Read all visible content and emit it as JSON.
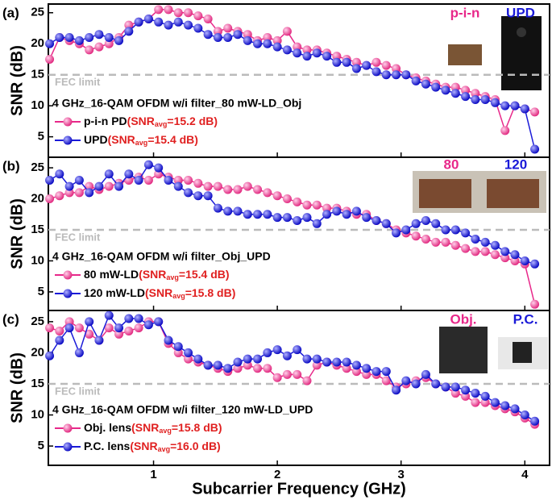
{
  "chart_data": [
    {
      "type": "line",
      "panel": "(a)",
      "title": "4 GHz_16-QAM OFDM w/i filter_80 mW-LD_Obj",
      "ylabel": "SNR (dB)",
      "fec": 15,
      "fec_label": "FEC limit",
      "xtick_labels": false,
      "xlim": [
        0.15,
        4.2
      ],
      "xticks": [
        1,
        2,
        3,
        4
      ],
      "ylim": [
        1.7,
        26.4
      ],
      "yticks": [
        5,
        10,
        15,
        20,
        25
      ],
      "insets": [
        "p-i-n",
        "UPD"
      ],
      "x": [
        0.16,
        0.24,
        0.32,
        0.4,
        0.48,
        0.56,
        0.64,
        0.72,
        0.8,
        0.88,
        0.96,
        1.04,
        1.12,
        1.2,
        1.28,
        1.36,
        1.44,
        1.52,
        1.6,
        1.68,
        1.76,
        1.84,
        1.92,
        2.0,
        2.08,
        2.16,
        2.24,
        2.32,
        2.4,
        2.48,
        2.56,
        2.64,
        2.72,
        2.8,
        2.88,
        2.96,
        3.04,
        3.12,
        3.2,
        3.28,
        3.36,
        3.44,
        3.52,
        3.6,
        3.68,
        3.76,
        3.84,
        3.92,
        4.0,
        4.08
      ],
      "series": [
        {
          "name": "p-i-n PD",
          "color": "#e8288a",
          "note": [
            "(SNR",
            "avg",
            "=15.2 dB)"
          ],
          "values": [
            17.5,
            21,
            20.5,
            20,
            19,
            19.5,
            20,
            21,
            23,
            23.5,
            24,
            25.5,
            25.5,
            25,
            25,
            24.5,
            24,
            22,
            22.5,
            22,
            21.5,
            20.5,
            21,
            20.5,
            22,
            19.5,
            19,
            19,
            18.5,
            18,
            17.5,
            17,
            16.5,
            17,
            16.5,
            16,
            15,
            14.5,
            14,
            13.5,
            13,
            13,
            12.5,
            12,
            11.5,
            11,
            6,
            10,
            9.5,
            9
          ]
        },
        {
          "name": "UPD",
          "color": "#1a1ad8",
          "note": [
            "(SNR",
            "avg",
            "=15.4 dB)"
          ],
          "values": [
            20,
            21,
            21,
            20.5,
            21,
            21.5,
            21,
            20.5,
            22,
            23.5,
            24,
            23.5,
            23,
            23.5,
            23,
            22.5,
            21.5,
            21,
            21,
            21.5,
            20.5,
            20,
            20,
            19.5,
            19,
            18.5,
            18,
            18.5,
            18,
            17,
            17,
            16,
            16.5,
            15.5,
            15,
            15,
            15,
            14,
            13.5,
            13,
            12.5,
            12,
            11.5,
            11,
            11,
            10.5,
            10,
            10,
            9.5,
            3
          ]
        }
      ]
    },
    {
      "type": "line",
      "panel": "(b)",
      "title": "4 GHz_16-QAM OFDM w/i filter_Obj_UPD",
      "ylabel": "SNR (dB)",
      "fec": 15,
      "fec_label": "FEC limit",
      "xtick_labels": false,
      "xlim": [
        0.15,
        4.2
      ],
      "xticks": [
        1,
        2,
        3,
        4
      ],
      "ylim": [
        2.0,
        26.7
      ],
      "yticks": [
        5,
        10,
        15,
        20,
        25
      ],
      "insets": [
        "80",
        "120"
      ],
      "x": [
        0.16,
        0.24,
        0.32,
        0.4,
        0.48,
        0.56,
        0.64,
        0.72,
        0.8,
        0.88,
        0.96,
        1.04,
        1.12,
        1.2,
        1.28,
        1.36,
        1.44,
        1.52,
        1.6,
        1.68,
        1.76,
        1.84,
        1.92,
        2.0,
        2.08,
        2.16,
        2.24,
        2.32,
        2.4,
        2.48,
        2.56,
        2.64,
        2.72,
        2.8,
        2.88,
        2.96,
        3.04,
        3.12,
        3.2,
        3.28,
        3.36,
        3.44,
        3.52,
        3.6,
        3.68,
        3.76,
        3.84,
        3.92,
        4.0,
        4.08
      ],
      "series": [
        {
          "name": "80 mW-LD",
          "color": "#e8288a",
          "note": [
            "(SNR",
            "avg",
            "=15.4 dB)"
          ],
          "values": [
            20,
            20.5,
            21,
            21,
            22,
            21.5,
            22,
            22.5,
            23,
            23.5,
            23,
            24,
            23.5,
            23,
            23,
            22.5,
            22,
            22,
            21.5,
            21.5,
            22,
            21.5,
            21,
            20.5,
            20,
            19.5,
            19,
            19,
            18.5,
            18.5,
            18,
            17.5,
            17.5,
            16.5,
            16,
            15,
            14.5,
            14,
            13.5,
            13,
            13,
            12.5,
            12,
            11.5,
            11.5,
            11,
            10.5,
            10,
            9.5,
            3
          ]
        },
        {
          "name": "120 mW-LD",
          "color": "#1a1ad8",
          "note": [
            "(SNR",
            "avg",
            "=15.8 dB)"
          ],
          "values": [
            23,
            24,
            22,
            23,
            21,
            22,
            24,
            22,
            24,
            23,
            25.5,
            25,
            23,
            22,
            21,
            20.5,
            20.5,
            18.5,
            18,
            18,
            17.5,
            17.5,
            17.5,
            17,
            17,
            16.5,
            17,
            16,
            17.5,
            18,
            17.5,
            18,
            17,
            16.5,
            16,
            14.5,
            15,
            16,
            16.5,
            16,
            15,
            15,
            14.5,
            13.5,
            13,
            12.5,
            11.5,
            11,
            10,
            9.5
          ]
        }
      ]
    },
    {
      "type": "line",
      "panel": "(c)",
      "title": "4 GHz_16-QAM OFDM w/i filter_120 mW-LD_UPD",
      "ylabel": "SNR (dB)",
      "xlabel": "Subcarrier Frequency (GHz)",
      "fec": 15,
      "fec_label": "FEC limit",
      "xtick_labels": true,
      "xlim": [
        0.15,
        4.2
      ],
      "xticks": [
        1,
        2,
        3,
        4
      ],
      "ylim": [
        1.9,
        26.8
      ],
      "yticks": [
        5,
        10,
        15,
        20,
        25
      ],
      "insets": [
        "Obj.",
        "P.C."
      ],
      "x": [
        0.16,
        0.24,
        0.32,
        0.4,
        0.48,
        0.56,
        0.64,
        0.72,
        0.8,
        0.88,
        0.96,
        1.04,
        1.12,
        1.2,
        1.28,
        1.36,
        1.44,
        1.52,
        1.6,
        1.68,
        1.76,
        1.84,
        1.92,
        2.0,
        2.08,
        2.16,
        2.24,
        2.32,
        2.4,
        2.48,
        2.56,
        2.64,
        2.72,
        2.8,
        2.88,
        2.96,
        3.04,
        3.12,
        3.2,
        3.28,
        3.36,
        3.44,
        3.52,
        3.6,
        3.68,
        3.76,
        3.84,
        3.92,
        4.0,
        4.08
      ],
      "series": [
        {
          "name": "Obj. lens",
          "color": "#e8288a",
          "note": [
            "(SNR",
            "avg",
            "=15.8 dB)"
          ],
          "values": [
            24,
            23.5,
            25,
            24,
            23,
            22,
            24,
            23,
            23.5,
            24,
            25,
            25,
            21.5,
            20,
            19,
            18.5,
            18,
            17.5,
            17,
            17.5,
            18,
            17.5,
            17.5,
            16,
            16.5,
            16.5,
            15.5,
            18,
            18.5,
            18,
            17.5,
            17,
            16.5,
            16.5,
            15.5,
            14.5,
            15,
            15.5,
            16,
            15,
            14.5,
            13.5,
            13,
            12,
            12,
            11.5,
            11,
            10.5,
            9.5,
            8.5
          ]
        },
        {
          "name": "P.C. lens",
          "color": "#1a1ad8",
          "note": [
            "(SNR",
            "avg",
            "=16.0 dB)"
          ],
          "values": [
            19.5,
            22,
            24,
            20,
            25,
            22,
            26,
            24,
            25.5,
            25.5,
            24.5,
            25,
            22,
            21,
            20,
            19,
            18,
            18,
            17.5,
            18.5,
            19,
            19,
            20,
            20.5,
            19.5,
            20.5,
            19,
            19,
            18.5,
            18.5,
            18.5,
            18,
            17.5,
            17,
            17,
            14,
            15.5,
            15,
            16.5,
            15,
            14.5,
            14.5,
            14,
            13.5,
            13,
            12,
            11.5,
            11,
            10,
            9
          ]
        }
      ]
    }
  ]
}
